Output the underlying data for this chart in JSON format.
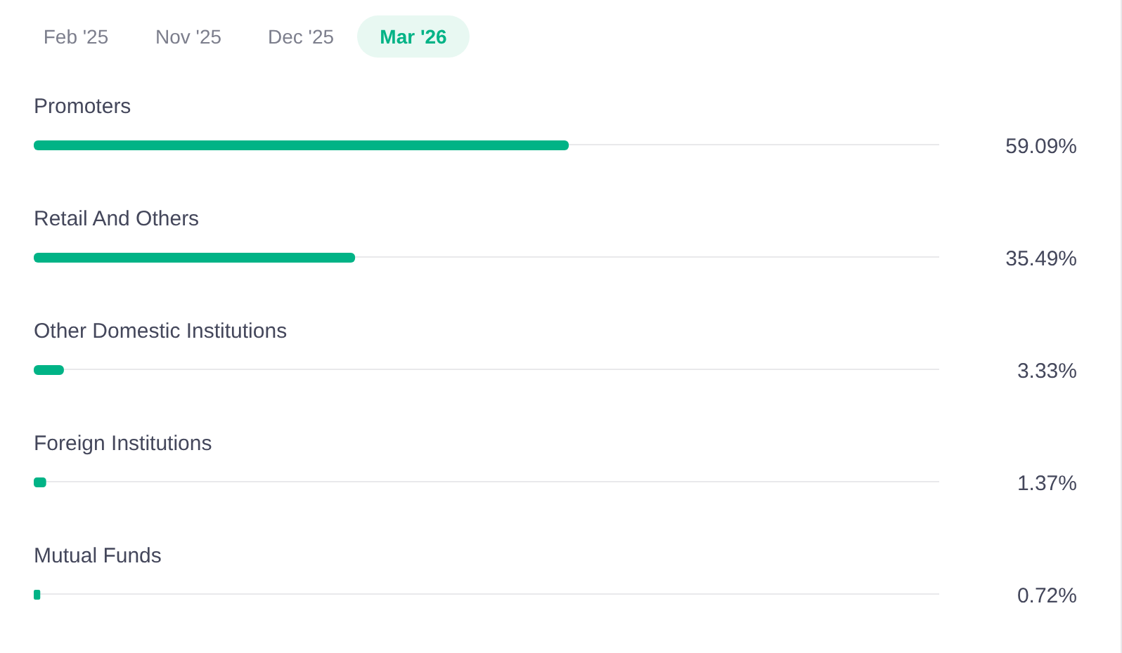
{
  "chart_data": {
    "type": "bar",
    "orientation": "horizontal",
    "categories": [
      "Promoters",
      "Retail And Others",
      "Other Domestic Institutions",
      "Foreign Institutions",
      "Mutual Funds"
    ],
    "values": [
      59.09,
      35.49,
      3.33,
      1.37,
      0.72
    ],
    "value_labels": [
      "59.09%",
      "35.49%",
      "3.33%",
      "1.37%",
      "0.72%"
    ],
    "color": "#00b386",
    "xlim": [
      0,
      100
    ],
    "grid": "y",
    "tick_labels": "y",
    "annotations": [
      "Feb '25",
      "Nov '25",
      "Dec '25",
      "Mar '26"
    ]
  }
}
